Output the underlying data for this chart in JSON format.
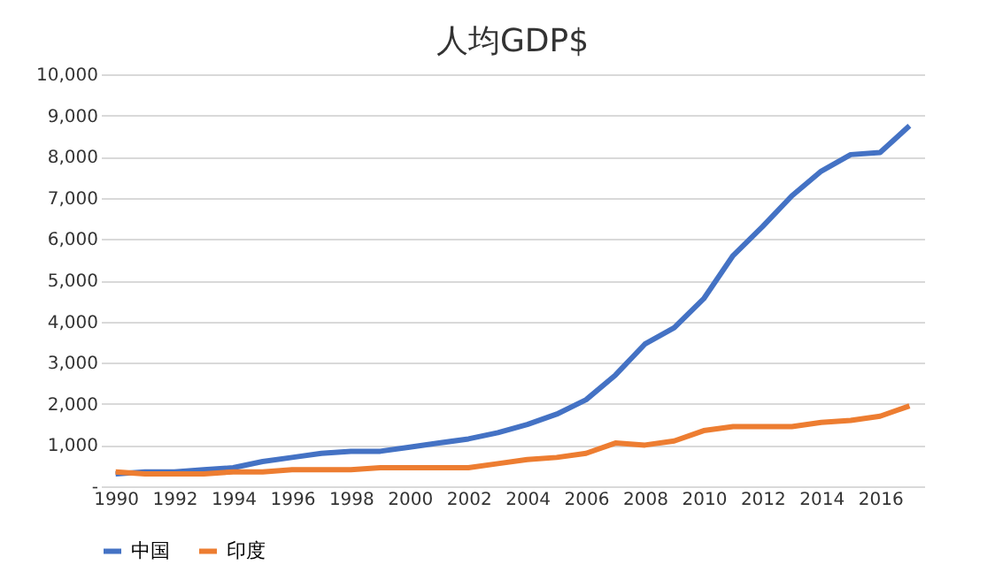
{
  "chart_data": {
    "type": "line",
    "title": "人均GDP$",
    "categories": [
      "1990",
      null,
      "1992",
      null,
      "1994",
      null,
      "1996",
      null,
      "1998",
      null,
      "2000",
      null,
      "2002",
      null,
      "2004",
      null,
      "2006",
      null,
      "2008",
      null,
      "2010",
      null,
      "2012",
      null,
      "2014",
      null,
      "2016",
      null
    ],
    "series": [
      {
        "name": "中国",
        "color": "#4472c4",
        "values": [
          300,
          350,
          350,
          400,
          450,
          600,
          700,
          800,
          850,
          850,
          950,
          1050,
          1150,
          1300,
          1500,
          1750,
          2100,
          2700,
          3450,
          3850,
          4550,
          5600,
          6300,
          7050,
          7650,
          8050,
          8100,
          8750
        ]
      },
      {
        "name": "印度",
        "color": "#ed7d31",
        "values": [
          350,
          300,
          300,
          300,
          350,
          350,
          400,
          400,
          400,
          450,
          450,
          450,
          450,
          550,
          650,
          700,
          800,
          1050,
          1000,
          1100,
          1350,
          1450,
          1450,
          1450,
          1550,
          1600,
          1700,
          1950
        ]
      }
    ],
    "ylim": [
      0,
      10000
    ],
    "yticks": [
      {
        "value": 0,
        "label": "-"
      },
      {
        "value": 1000,
        "label": "1,000"
      },
      {
        "value": 2000,
        "label": "2,000"
      },
      {
        "value": 3000,
        "label": "3,000"
      },
      {
        "value": 4000,
        "label": "4,000"
      },
      {
        "value": 5000,
        "label": "5,000"
      },
      {
        "value": 6000,
        "label": "6,000"
      },
      {
        "value": 7000,
        "label": "7,000"
      },
      {
        "value": 8000,
        "label": "8,000"
      },
      {
        "value": 9000,
        "label": "9,000"
      },
      {
        "value": 10000,
        "label": "10,000"
      }
    ],
    "grid": "y",
    "legend": "bottom",
    "marker": "none",
    "line_style": "solid"
  }
}
